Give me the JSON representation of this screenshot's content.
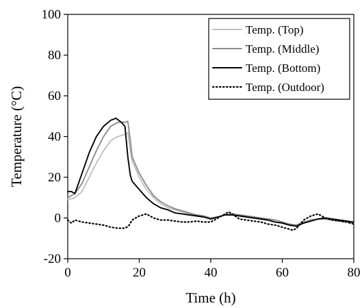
{
  "chart_data": {
    "type": "line",
    "title": "",
    "xlabel": "Time (h)",
    "ylabel": "Temperature (°C)",
    "xlim": [
      0,
      80
    ],
    "ylim": [
      -20,
      100
    ],
    "x_ticks": [
      0,
      20,
      40,
      60,
      80
    ],
    "y_ticks": [
      -20,
      0,
      20,
      40,
      60,
      80,
      100
    ],
    "x_tick_labels": [
      "0",
      "20",
      "40",
      "60",
      "80"
    ],
    "y_tick_labels": [
      "-20",
      "0",
      "20",
      "40",
      "60",
      "80",
      "100"
    ],
    "grid": false,
    "legend_position": "top-right",
    "series": [
      {
        "name": "Temp. (Top)",
        "color": "#c0c0c0",
        "dash": "solid",
        "x": [
          0,
          2,
          4,
          6,
          8,
          10,
          12,
          14,
          16,
          16.8,
          17.5,
          18,
          20,
          22,
          24,
          26,
          28,
          30,
          32,
          34,
          36,
          38,
          40,
          42,
          44,
          46,
          48,
          50,
          52,
          54,
          56,
          58,
          60,
          62,
          64,
          66,
          68,
          70,
          72,
          74,
          76,
          78,
          80
        ],
        "y": [
          9,
          10,
          13,
          20,
          27,
          33,
          38,
          40,
          41,
          42,
          33,
          28,
          20,
          14,
          10,
          7,
          5,
          4,
          3,
          2,
          1.5,
          1,
          0,
          0.5,
          1.5,
          2,
          1.5,
          1,
          0.5,
          0,
          -0.5,
          -1,
          -2,
          -3,
          -3.5,
          -2,
          -1,
          -0.5,
          -0.5,
          -1,
          -1.5,
          -2,
          -2.5
        ]
      },
      {
        "name": "Temp. (Middle)",
        "color": "#8c8c8c",
        "dash": "solid",
        "x": [
          0,
          2,
          4,
          6,
          8,
          10,
          12,
          14,
          16,
          16.8,
          17.5,
          18,
          20,
          22,
          24,
          26,
          28,
          30,
          32,
          34,
          36,
          38,
          40,
          42,
          44,
          46,
          48,
          50,
          52,
          54,
          56,
          58,
          60,
          62,
          64,
          66,
          68,
          70,
          72,
          74,
          76,
          78,
          80
        ],
        "y": [
          10,
          12,
          17,
          25,
          33,
          40,
          45,
          47,
          47,
          47.5,
          38,
          30,
          22,
          16,
          11,
          8,
          6,
          4.5,
          3.5,
          2.5,
          1.5,
          1,
          0,
          0.5,
          1.5,
          2,
          1.5,
          1,
          0.5,
          0,
          -0.5,
          -1,
          -2,
          -3,
          -3.5,
          -2,
          -1,
          -0.5,
          -0.5,
          -1,
          -1.5,
          -2,
          -2.5
        ]
      },
      {
        "name": "Temp. (Bottom)",
        "color": "#000000",
        "dash": "solid",
        "x": [
          0,
          1,
          2,
          4,
          6,
          8,
          10,
          12,
          13.5,
          15,
          16,
          16.8,
          17.5,
          18,
          20,
          22,
          24,
          26,
          28,
          30,
          32,
          34,
          36,
          38,
          40,
          42,
          44,
          46,
          48,
          50,
          52,
          54,
          56,
          58,
          60,
          62,
          64,
          66,
          68,
          70,
          72,
          74,
          76,
          78,
          80
        ],
        "y": [
          13,
          13,
          12,
          22,
          32,
          40,
          45,
          48,
          49,
          47,
          45,
          30,
          21,
          18,
          14,
          10,
          7,
          5,
          4,
          2.5,
          2,
          1.5,
          1,
          0.5,
          -0.5,
          0.5,
          1.5,
          1.5,
          1,
          0.5,
          0,
          -0.5,
          -1,
          -2,
          -2.5,
          -3.5,
          -4,
          -2.5,
          -1.5,
          -0.5,
          0,
          -0.5,
          -1,
          -1.5,
          -2
        ]
      },
      {
        "name": "Temp. (Outdoor)",
        "color": "#000000",
        "dash": "dotted",
        "x": [
          0,
          1,
          2,
          4,
          6,
          8,
          10,
          12,
          14,
          16,
          17,
          18,
          20,
          22,
          24,
          26,
          28,
          30,
          32,
          34,
          36,
          38,
          40,
          42,
          44,
          45,
          46,
          48,
          50,
          52,
          54,
          56,
          58,
          60,
          62,
          63,
          64,
          66,
          68,
          70,
          72,
          74,
          76,
          78,
          80
        ],
        "y": [
          -1,
          -2.5,
          -1,
          -2,
          -2.5,
          -3,
          -3.5,
          -4.5,
          -5,
          -5,
          -4,
          -1,
          1,
          2,
          0,
          -1,
          -1,
          -1.5,
          -2,
          -2,
          -1.5,
          -2,
          -2,
          0,
          2,
          3,
          2,
          -0.5,
          -1,
          -1.5,
          -2,
          -3,
          -3.5,
          -4.5,
          -5.5,
          -6,
          -5,
          -1,
          1,
          2,
          0,
          -1,
          -1.5,
          -2,
          -3
        ]
      }
    ]
  }
}
